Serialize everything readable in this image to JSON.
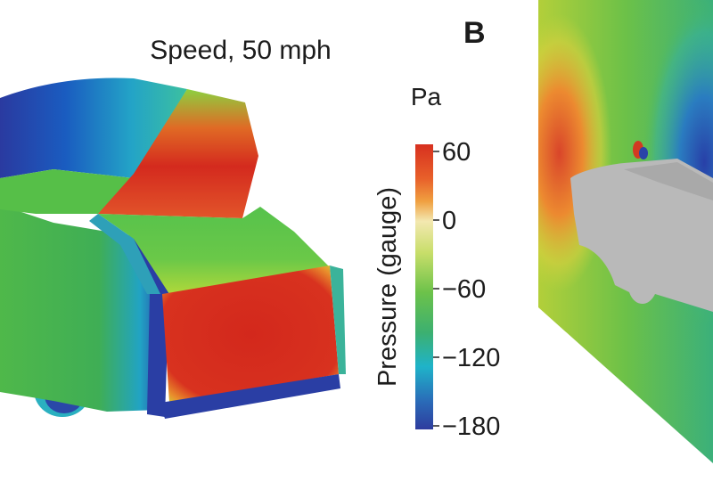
{
  "figure": {
    "title": "Speed, 50 mph",
    "panel_letter": "B",
    "unit": "Pa",
    "colorbar_label": "Pressure (gauge)",
    "colorbar_ticks": [
      {
        "value": 60,
        "label": "60"
      },
      {
        "value": 0,
        "label": "0"
      },
      {
        "value": -60,
        "label": "−60"
      },
      {
        "value": -120,
        "label": "−120"
      },
      {
        "value": -180,
        "label": "−180"
      }
    ],
    "colorbar_range": [
      -180,
      60
    ],
    "colors": {
      "high": "#d7301f",
      "orange": "#f07a2a",
      "neutral": "#f3e8b0",
      "mid": "#5cc14a",
      "cyan": "#1fb3c9",
      "low": "#2e3c9e",
      "car_gray": "#b9b9b9"
    }
  }
}
